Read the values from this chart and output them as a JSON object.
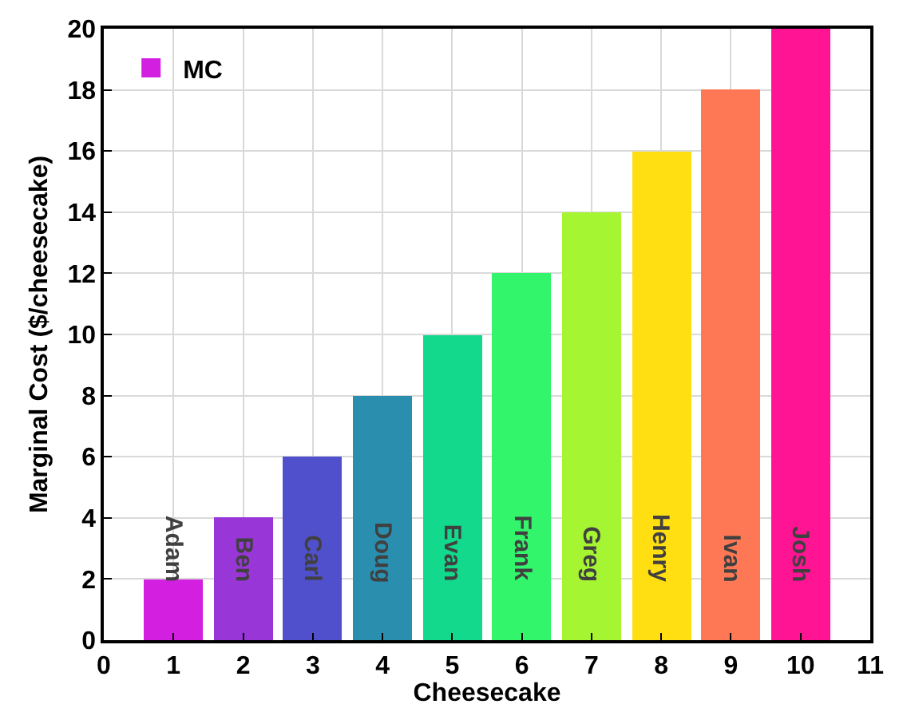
{
  "chart_data": {
    "type": "bar",
    "xlabel": "Cheesecake",
    "ylabel": "Marginal Cost ($/cheesecake)",
    "x": [
      1,
      2,
      3,
      4,
      5,
      6,
      7,
      8,
      9,
      10
    ],
    "series": [
      {
        "name": "MC",
        "values": [
          2,
          4,
          6,
          8,
          10,
          12,
          14,
          16,
          18,
          20
        ],
        "colors": [
          "#d21fe0",
          "#9836d8",
          "#5050cc",
          "#2a8faf",
          "#12d98b",
          "#33f56b",
          "#a6f533",
          "#ffdf12",
          "#ff7855",
          "#ff1493"
        ]
      }
    ],
    "annotations": [
      "Adam",
      "Ben",
      "Carl",
      "Doug",
      "Evan",
      "Frank",
      "Greg",
      "Henry",
      "Ivan",
      "Josh"
    ],
    "xlim": [
      0,
      11
    ],
    "xticks": [
      0,
      1,
      2,
      3,
      4,
      5,
      6,
      7,
      8,
      9,
      10,
      11
    ],
    "ylim": [
      0,
      20
    ],
    "yticks": [
      0,
      2,
      4,
      6,
      8,
      10,
      12,
      14,
      16,
      18,
      20
    ],
    "grid": true,
    "legend": "top left"
  }
}
